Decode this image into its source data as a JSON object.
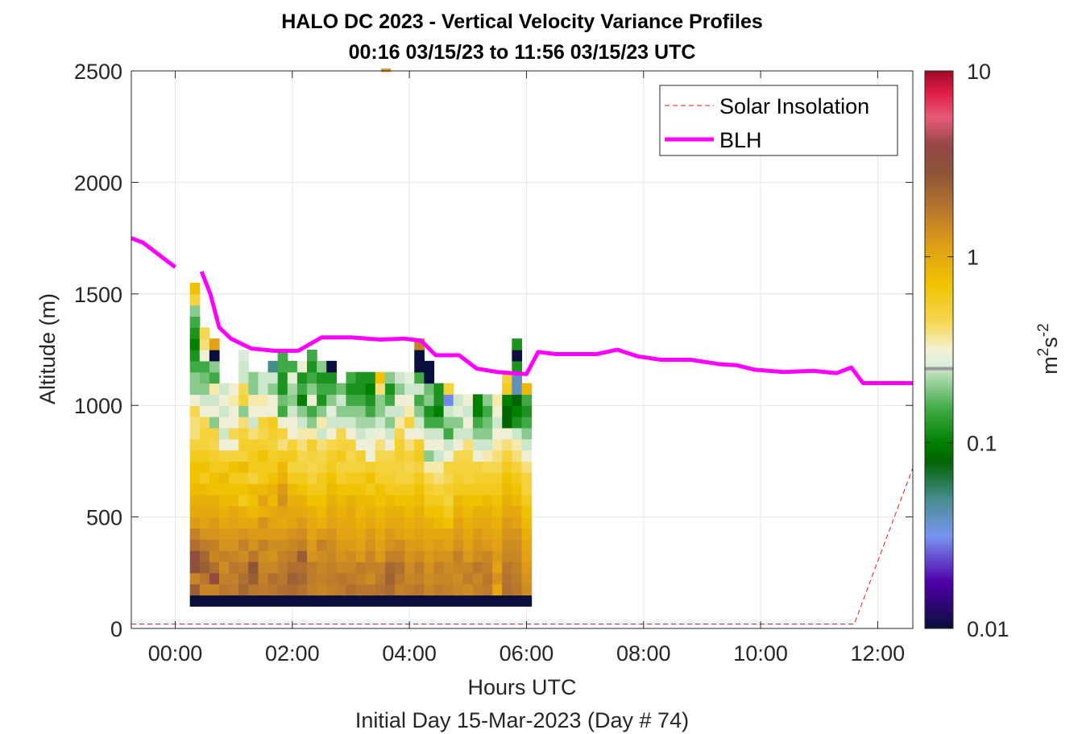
{
  "chart_data": {
    "type": "heatmap",
    "title_line1": "HALO DC 2023 - Vertical Velocity Variance Profiles",
    "title_line2": "00:16 03/15/23 to 11:56 03/15/23  UTC",
    "xlabel": "Hours UTC",
    "xlabel2": "Initial Day 15-Mar-2023 (Day # 74)",
    "ylabel": "Altitude (m)",
    "colorbar_label": "m^2s^-2",
    "colorbar_label_parts": {
      "m": "m",
      "exp1": "2",
      "s": "s",
      "exp2": "-2"
    },
    "xlim_hours": [
      -0.75,
      12.6
    ],
    "ylim": [
      0,
      2500
    ],
    "xticks": [
      {
        "value": 0,
        "label": "00:00"
      },
      {
        "value": 2,
        "label": "02:00"
      },
      {
        "value": 4,
        "label": "04:00"
      },
      {
        "value": 6,
        "label": "06:00"
      },
      {
        "value": 8,
        "label": "08:00"
      },
      {
        "value": 10,
        "label": "10:00"
      },
      {
        "value": 12,
        "label": "12:00"
      }
    ],
    "yticks": [
      {
        "value": 0,
        "label": "0"
      },
      {
        "value": 500,
        "label": "500"
      },
      {
        "value": 1000,
        "label": "1000"
      },
      {
        "value": 1500,
        "label": "1500"
      },
      {
        "value": 2000,
        "label": "2000"
      },
      {
        "value": 2500,
        "label": "2500"
      }
    ],
    "colorbar": {
      "scale": "log",
      "range": [
        0.01,
        10
      ],
      "ticks": [
        {
          "value": 0.01,
          "label": "0.01"
        },
        {
          "value": 0.1,
          "label": "0.1"
        },
        {
          "value": 1,
          "label": "1"
        },
        {
          "value": 10,
          "label": "10"
        }
      ],
      "marker_value": 0.25
    },
    "legend": {
      "placement": "top-right",
      "entries": [
        {
          "label": "Solar Insolation",
          "style": "dashed",
          "color": "#e41a1c"
        },
        {
          "label": "BLH",
          "style": "solid",
          "color": "#ff00ff"
        }
      ]
    },
    "heatmap": {
      "time_start_hours": 0.25,
      "time_step_hours": 0.1667,
      "alt_start_m": 100,
      "alt_step_m": 50,
      "value_units": "m^2 s^-2",
      "columns": [
        [
          0.01,
          2.5,
          1.5,
          3,
          3.2,
          2,
          1.6,
          1.2,
          1,
          0.9,
          0.8,
          0.7,
          0.7,
          0.6,
          0.5,
          0.4,
          0.4,
          0.45,
          0.3,
          0.2,
          0.2,
          0.15,
          0.12,
          0.1,
          0.12,
          0.15,
          0.2,
          0.5,
          0.7
        ],
        [
          0.01,
          1.5,
          1.8,
          2.5,
          2.2,
          1.7,
          1.3,
          1.1,
          1,
          0.9,
          0.8,
          0.6,
          0.7,
          0.6,
          0.5,
          0.5,
          0.45,
          0.3,
          0.25,
          0.2,
          0.18,
          0.15,
          0.3,
          0.4,
          0.45
        ],
        [
          0.01,
          1.5,
          3.5,
          2,
          1.5,
          1.6,
          1.3,
          1.2,
          1,
          0.9,
          0.7,
          0.7,
          0.6,
          0.55,
          0.45,
          0.5,
          0.2,
          0.3,
          0.25,
          0.35,
          0.15,
          0.2,
          0.01,
          1.1
        ],
        [
          0.01,
          1.8,
          1.6,
          1.4,
          1.6,
          1.3,
          1.2,
          1,
          0.9,
          0.8,
          0.7,
          0.8,
          0.6,
          0.5,
          0.3,
          0.25,
          0.3,
          0.25,
          0.3,
          0.25
        ],
        [
          0.01,
          1.7,
          1.6,
          1.8,
          1.5,
          1.3,
          1.2,
          1.1,
          1,
          0.8,
          0.7,
          0.6,
          0.7,
          0.5,
          0.3,
          0.45,
          0.3,
          0.3,
          0.35,
          0.3
        ],
        [
          0.01,
          2.2,
          2,
          1.7,
          1.4,
          1.6,
          1.3,
          1,
          0.9,
          0.6,
          0.7,
          0.6,
          0.8,
          0.5,
          0.55,
          0.5,
          0.4,
          0.2,
          0.5,
          0.45,
          0.25,
          0.25,
          0.26
        ],
        [
          0.01,
          1.8,
          2.5,
          2.8,
          1.8,
          1.3,
          1.2,
          1,
          0.8,
          0.7,
          0.8,
          0.5,
          0.6,
          0.6,
          0.55,
          0.4,
          0.25,
          0.3,
          0.35,
          0.2,
          0.2
        ],
        [
          0.01,
          1.7,
          1.6,
          1.5,
          1.4,
          1.6,
          1.2,
          1.3,
          0.9,
          1.1,
          0.8,
          0.6,
          0.6,
          0.7,
          0.55,
          0.45,
          0.5,
          0.3,
          0.35,
          0.25,
          0.25
        ],
        [
          0.01,
          1.8,
          2,
          1.5,
          1.3,
          1.4,
          1.2,
          1.1,
          1,
          0.8,
          0.9,
          0.7,
          0.6,
          0.55,
          0.5,
          0.55,
          0.6,
          0.3,
          0.3,
          0.2,
          0.25,
          0.05
        ],
        [
          0.01,
          2,
          1.8,
          1.7,
          1.6,
          1.4,
          1.2,
          1,
          1.1,
          1.3,
          1.2,
          0.9,
          0.8,
          0.6,
          0.4,
          0.5,
          0.3,
          0.15,
          0.18,
          0.12,
          0.12,
          0.15,
          0.15
        ],
        [
          0.01,
          2.1,
          2.4,
          2,
          1.7,
          1.5,
          1.3,
          1.1,
          1,
          0.9,
          0.8,
          0.6,
          0.5,
          0.6,
          0.5,
          0.3,
          0.3,
          0.25,
          0.2,
          0.22,
          0.28,
          0.15
        ],
        [
          0.01,
          1.9,
          2.2,
          2,
          2.5,
          1.6,
          1.4,
          1.2,
          1,
          0.9,
          0.7,
          0.6,
          0.5,
          0.45,
          0.4,
          0.35,
          0.25,
          0.2,
          0.1,
          0.15,
          0.12,
          0.3
        ],
        [
          0.01,
          1.6,
          1.7,
          1.7,
          1.3,
          1.2,
          1.1,
          1,
          0.9,
          0.7,
          0.6,
          0.5,
          0.45,
          0.5,
          0.55,
          0.35,
          0.2,
          0.15,
          0.3,
          0.2,
          0.15,
          0.12,
          0.15
        ],
        [
          0.01,
          1.5,
          1.6,
          1.5,
          1.4,
          1.6,
          1.2,
          0.9,
          0.8,
          0.7,
          0.6,
          0.6,
          0.5,
          0.45,
          0.4,
          0.25,
          0.35,
          0.2,
          0.12,
          0.15,
          0.12,
          0.2
        ],
        [
          0.01,
          1.6,
          1.7,
          1.6,
          1.5,
          1.4,
          1.3,
          1.1,
          1,
          0.9,
          0.8,
          0.7,
          0.6,
          0.55,
          0.45,
          0.3,
          0.25,
          0.28,
          0.2,
          0.15,
          0.12,
          0.01
        ],
        [
          0.01,
          1.7,
          1.8,
          1.5,
          1.3,
          1.2,
          1.1,
          1,
          0.9,
          0.8,
          0.7,
          0.55,
          0.5,
          0.6,
          0.5,
          0.45,
          0.25,
          0.2,
          0.25,
          0.18
        ],
        [
          0.01,
          2,
          1.7,
          1.5,
          1.4,
          1.2,
          1.1,
          1,
          1,
          0.9,
          0.7,
          0.6,
          0.5,
          0.45,
          0.5,
          0.3,
          0.25,
          0.2,
          0.15,
          0.12,
          0.15
        ],
        [
          0.01,
          1.8,
          1.6,
          1.7,
          1.2,
          1.1,
          1,
          0.9,
          0.8,
          0.8,
          0.7,
          0.6,
          0.5,
          0.55,
          0.3,
          0.25,
          0.22,
          0.2,
          0.15,
          0.12,
          0.12
        ],
        [
          0.01,
          1.8,
          1.4,
          1.6,
          1.5,
          1.3,
          1.2,
          1,
          0.9,
          0.8,
          0.6,
          0.7,
          0.55,
          0.3,
          0.3,
          0.28,
          0.22,
          0.15,
          0.12,
          0.1,
          0.12
        ],
        [
          0.01,
          1.9,
          1.7,
          1.6,
          1.2,
          1.1,
          1,
          0.9,
          0.8,
          0.7,
          0.7,
          0.55,
          0.5,
          0.45,
          0.4,
          0.3,
          0.25,
          0.2,
          0.2,
          0.4,
          0.7
        ],
        [
          0.01,
          2.1,
          2.3,
          2.2,
          1.6,
          1.3,
          1.2,
          1,
          0.9,
          0.8,
          0.6,
          0.55,
          0.5,
          0.45,
          0.3,
          0.25,
          0.2,
          0.25,
          0.15,
          0.12,
          0.2
        ],
        [
          0.01,
          1.6,
          1.8,
          2,
          1.6,
          1.4,
          1.1,
          1,
          0.9,
          0.7,
          0.6,
          0.5,
          0.5,
          0.55,
          0.55,
          0.45,
          0.35,
          0.25,
          0.3,
          0.2,
          0.25
        ],
        [
          0.01,
          1.7,
          1.5,
          1.4,
          1.3,
          1.2,
          1,
          0.9,
          0.8,
          0.7,
          0.6,
          0.5,
          0.45,
          0.5,
          0.4,
          0.3,
          0.5,
          0.35,
          0.3,
          0.25,
          0.28
        ],
        [
          0.01,
          1.8,
          1.6,
          1.7,
          1.4,
          1.2,
          1.1,
          1,
          0.9,
          0.8,
          0.7,
          0.6,
          0.5,
          0.6,
          0.55,
          0.3,
          0.25,
          0.2,
          0.15,
          0.25,
          0.15,
          0.01,
          0.01,
          1.6
        ],
        [
          0.01,
          1.5,
          1.4,
          1.3,
          1.2,
          1.1,
          1,
          0.9,
          0.7,
          0.6,
          0.55,
          0.45,
          0.35,
          0.2,
          0.3,
          0.25,
          0.15,
          0.12,
          0.2,
          0.18,
          0.01,
          0.01
        ],
        [
          0.01,
          1.7,
          1.5,
          1.6,
          1.3,
          1.2,
          1,
          0.8,
          0.7,
          0.6,
          0.5,
          0.4,
          0.35,
          0.25,
          0.3,
          0.25,
          0.15,
          0.1,
          0.12,
          0.12
        ],
        [
          0.01,
          1.6,
          1.5,
          1.4,
          1.3,
          1.1,
          1,
          0.7,
          0.6,
          0.5,
          0.55,
          0.45,
          0.5,
          0.3,
          0.25,
          0.15,
          0.2,
          0.25,
          0.03,
          0.5
        ],
        [
          0.01,
          1.5,
          1.4,
          1.5,
          1.6,
          1.3,
          1.2,
          1.1,
          0.9,
          0.8,
          0.6,
          0.55,
          0.5,
          0.45,
          0.3,
          0.25,
          0.2,
          0.28,
          0.25
        ],
        [
          0.01,
          1.4,
          1.7,
          1.5,
          1.2,
          1.1,
          1,
          0.9,
          0.8,
          0.7,
          0.6,
          0.5,
          0.5,
          0.45,
          0.4,
          0.25,
          0.3,
          0.25,
          0.3
        ],
        [
          0.01,
          1.6,
          1.5,
          1.8,
          1.4,
          1.3,
          1.2,
          1,
          0.9,
          0.7,
          0.6,
          0.55,
          0.5,
          0.3,
          0.25,
          0.2,
          0.15,
          0.1,
          0.1
        ],
        [
          0.01,
          1.7,
          1.8,
          1.6,
          1.5,
          1.2,
          1.1,
          1,
          0.9,
          0.8,
          0.6,
          0.55,
          0.45,
          0.35,
          0.25,
          0.2,
          0.18,
          0.15,
          0.2
        ],
        [
          0.01,
          1,
          1.3,
          1.1,
          1.2,
          1.1,
          1,
          0.9,
          0.8,
          0.7,
          0.6,
          0.55,
          0.45,
          0.4,
          0.35,
          0.3,
          0.25,
          0.3,
          0.35
        ],
        [
          0.01,
          2,
          1.9,
          1.8,
          1.5,
          1.4,
          1.3,
          1.2,
          1,
          0.9,
          0.8,
          0.7,
          0.6,
          0.5,
          0.4,
          0.3,
          0.08,
          0.08,
          0.1,
          0.6,
          0.5
        ],
        [
          0.01,
          1.8,
          1.7,
          1.6,
          1.5,
          1.4,
          1.3,
          1.1,
          1,
          0.8,
          0.7,
          0.6,
          0.5,
          0.4,
          0.35,
          0.25,
          0.12,
          0.1,
          0.08,
          0.04,
          0.04,
          0.12,
          0.01,
          0.12
        ],
        [
          0.01,
          1.4,
          1.3,
          1.2,
          1.1,
          1,
          0.9,
          0.8,
          0.7,
          0.6,
          0.5,
          0.5,
          0.4,
          0.3,
          0.25,
          0.2,
          0.15,
          0.12,
          0.15,
          0.8
        ]
      ]
    },
    "blh": {
      "x_hours": [
        -0.75,
        -0.55,
        -0.3,
        0,
        0.1,
        0.45,
        0.6,
        0.75,
        0.95,
        1.3,
        1.7,
        2.1,
        2.5,
        3,
        3.5,
        3.9,
        4.2,
        4.45,
        4.85,
        5.15,
        5.5,
        6,
        6.2,
        6.5,
        6.9,
        7.2,
        7.55,
        7.9,
        8.3,
        8.8,
        9.3,
        9.6,
        9.9,
        10.4,
        10.9,
        11.3,
        11.55,
        11.75,
        12.6
      ],
      "y_m": [
        1750,
        1730,
        1680,
        1620,
        null,
        1600,
        1500,
        1350,
        1300,
        1255,
        1245,
        1245,
        1305,
        1305,
        1295,
        1300,
        1290,
        1225,
        1225,
        1165,
        1150,
        1140,
        1240,
        1230,
        1230,
        1230,
        1250,
        1220,
        1205,
        1205,
        1185,
        1180,
        1160,
        1150,
        1155,
        1145,
        1170,
        1100,
        1100
      ]
    },
    "solar_insolation": {
      "x_hours": [
        -0.75,
        11.6,
        12.6
      ],
      "y_m": [
        20,
        20,
        720
      ]
    },
    "artifacts": [
      {
        "x_hour": 3.6,
        "alt_m": 2490,
        "value": 1.3
      }
    ]
  }
}
